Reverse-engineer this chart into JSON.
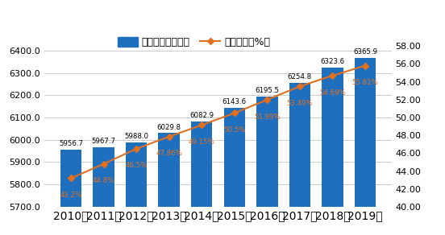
{
  "years": [
    "2010年",
    "2011年",
    "2012年",
    "2013年",
    "2014年",
    "2015年",
    "2016年",
    "2017年",
    "2018年",
    "2019年"
  ],
  "population": [
    5956.7,
    5967.7,
    5988.0,
    6029.8,
    6082.9,
    6143.6,
    6195.5,
    6254.8,
    6323.6,
    6365.9
  ],
  "urbanization": [
    43.2,
    44.8,
    46.5,
    47.86,
    49.15,
    50.5,
    51.99,
    53.49,
    54.69,
    55.81
  ],
  "urbanization_labels": [
    "43.2%",
    "44.8%",
    "46.5%",
    "47.86%",
    "49.15%",
    "50.5%",
    "51.99%",
    "53.49%",
    "54.69%",
    "55.81%"
  ],
  "bar_color": "#1F6FBF",
  "line_color": "#E07020",
  "marker_color": "#E07020",
  "left_ylim": [
    5700.0,
    6500.0
  ],
  "left_yticks": [
    5700.0,
    5800.0,
    5900.0,
    6000.0,
    6100.0,
    6200.0,
    6300.0,
    6400.0
  ],
  "right_ylim": [
    40.0,
    60.0
  ],
  "right_yticks": [
    40.0,
    42.0,
    44.0,
    46.0,
    48.0,
    50.0,
    52.0,
    54.0,
    56.0,
    58.0
  ],
  "legend_bar": "常住人口（万人）",
  "legend_line": "城镇化率（%）",
  "background_color": "#ffffff",
  "grid_color": "#cccccc",
  "tick_fontsize": 8,
  "anno_fontsize": 6.5,
  "legend_fontsize": 9
}
